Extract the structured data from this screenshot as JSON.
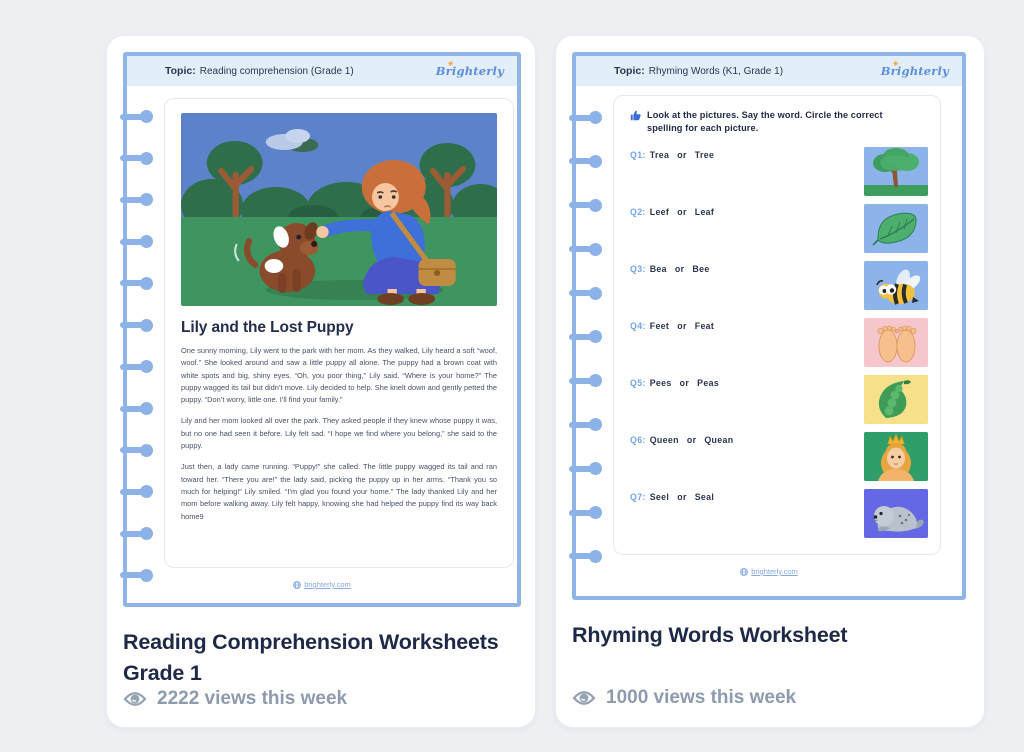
{
  "page": {
    "background_color": "#edeff3"
  },
  "icons": {
    "views": "eye-icon",
    "instruction": "thumbs-up-icon",
    "footer": "globe-icon",
    "brand_star": "sun-icon"
  },
  "colors": {
    "sheet_border": "#8fb4e8",
    "header_band": "#e3eefb",
    "question_label": "#74a4ea",
    "title_text": "#1d2946",
    "views_text": "#8e9aad",
    "brand_blue": "#5d8ed9"
  },
  "cards": [
    {
      "title": "Reading Comprehension Worksheets Grade 1",
      "views": "2222 views this week",
      "worksheet": {
        "topic_label": "Topic:",
        "topic_value": "Reading comprehension (Grade 1)",
        "brand": "Brighterly",
        "story_title": "Lily and the Lost Puppy",
        "paragraphs": [
          "One sunny morning, Lily went to the park with her mom. As they walked, Lily heard a soft “woof, woof.” She looked around and saw a little puppy all alone. The puppy had a brown coat with white spots and big, shiny eyes. “Oh, you poor thing,” Lily said. “Where is your home?” The puppy wagged its tail but didn’t move. Lily decided to help. She knelt down and gently petted the puppy. “Don’t worry, little one. I’ll find your family.”",
          "Lily and her mom looked all over the park. They asked people if they knew whose puppy it was, but no one had seen it before. Lily felt sad. “I hope we find where you belong,” she said to the puppy.",
          "Just then, a lady came running. “Puppy!” she called. The little puppy wagged its tail and ran toward her. “There you are!” the lady said, picking the puppy up in her arms. “Thank you so much for helping!” Lily smiled. “I’m glad you found your home.” The lady thanked Lily and her mom before walking away. Lily felt happy, knowing she had helped the puppy find its way back home9"
        ],
        "footer_link": "brighterly.com"
      }
    },
    {
      "title": "Rhyming Words Worksheet",
      "views": "1000 views this week",
      "worksheet": {
        "topic_label": "Topic:",
        "topic_value": "Rhyming Words (K1, Grade 1)",
        "brand": "Brighterly",
        "instruction": "Look at the pictures. Say the word. Circle the correct spelling for each picture.",
        "questions": [
          {
            "label": "Q1:",
            "word1": "Trea",
            "or": "or",
            "word2": "Tree",
            "image": "tree",
            "image_bg": "#8cb4ea"
          },
          {
            "label": "Q2:",
            "word1": "Leef",
            "or": "or",
            "word2": "Leaf",
            "image": "leaf",
            "image_bg": "#8cb4ea"
          },
          {
            "label": "Q3:",
            "word1": "Bea",
            "or": "or",
            "word2": "Bee",
            "image": "bee",
            "image_bg": "#8cb4ea"
          },
          {
            "label": "Q4:",
            "word1": "Feet",
            "or": "or",
            "word2": "Feat",
            "image": "feet",
            "image_bg": "#f5c6cb"
          },
          {
            "label": "Q5:",
            "word1": "Pees",
            "or": "or",
            "word2": "Peas",
            "image": "peas",
            "image_bg": "#f6e18a"
          },
          {
            "label": "Q6:",
            "word1": "Queen",
            "or": "or",
            "word2": "Quean",
            "image": "queen",
            "image_bg": "#2f9e68"
          },
          {
            "label": "Q7:",
            "word1": "Seel",
            "or": "or",
            "word2": "Seal",
            "image": "seal",
            "image_bg": "#6468e4"
          }
        ],
        "footer_link": "brighterly.com"
      }
    }
  ]
}
